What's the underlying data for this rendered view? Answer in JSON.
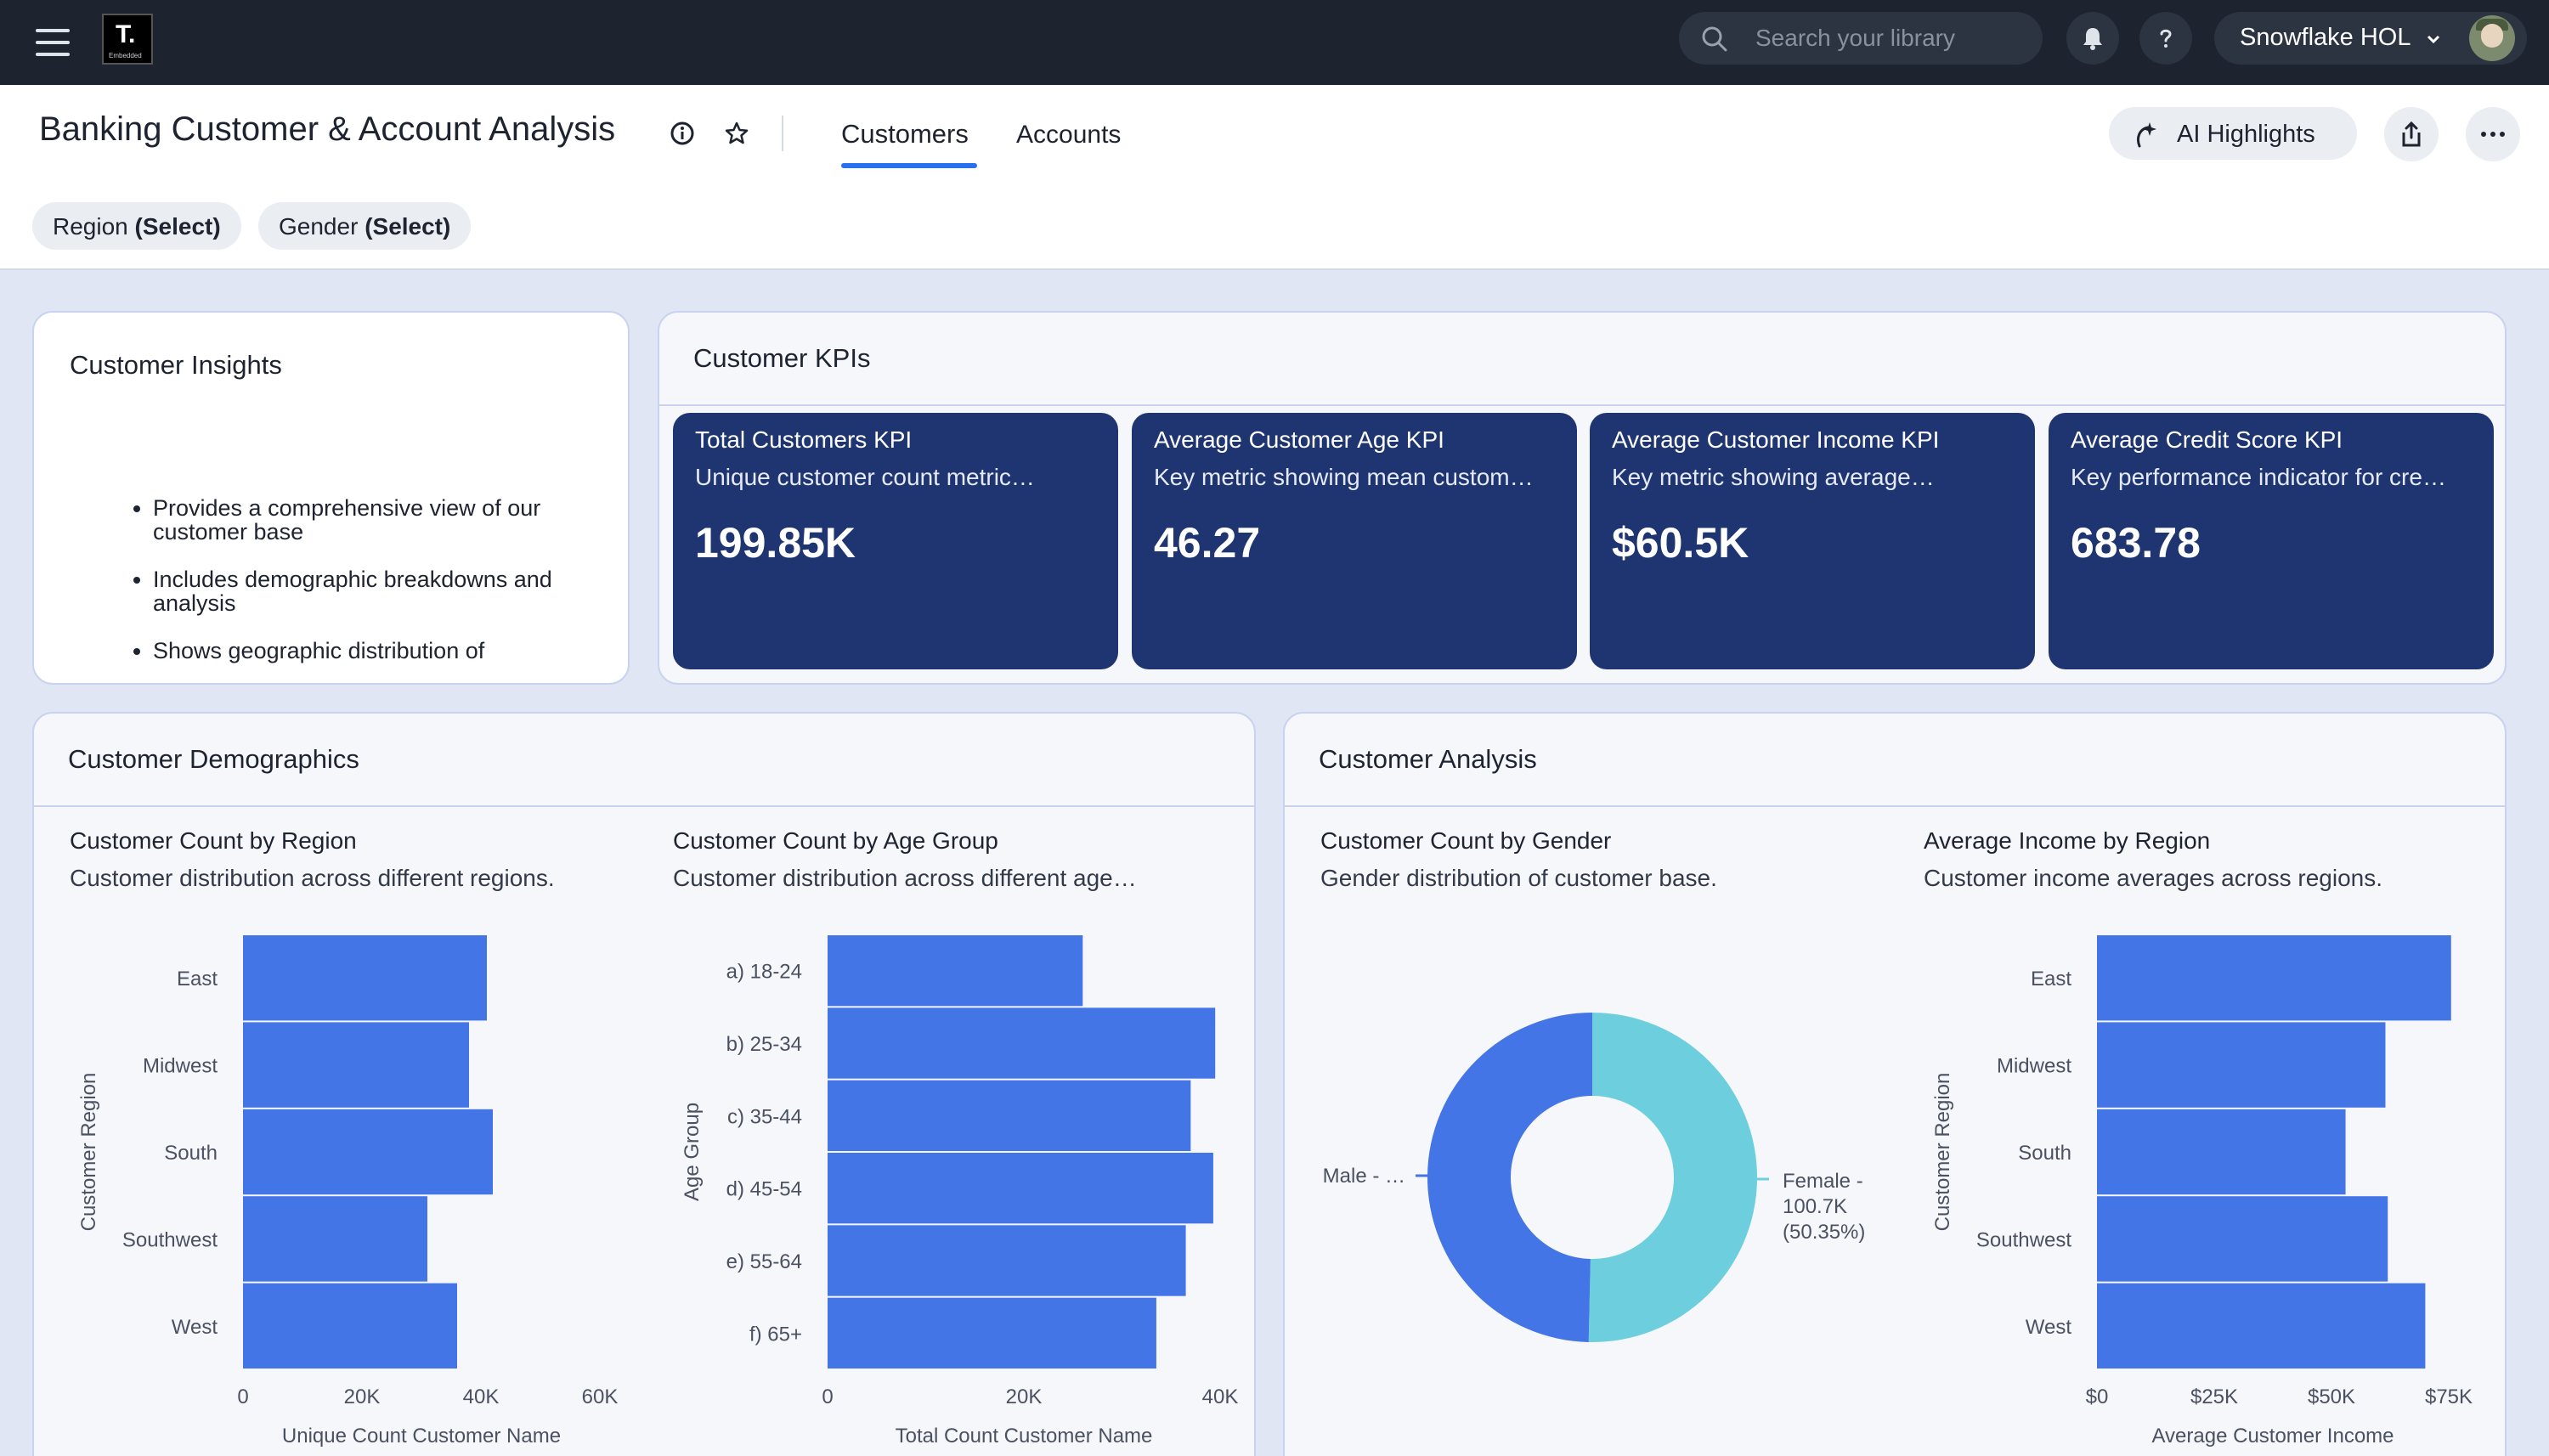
{
  "topbar": {
    "logo_letter": "T.",
    "logo_sub": "Embedded",
    "search_placeholder": "Search your library",
    "account_name": "Snowflake HOL"
  },
  "header": {
    "title": "Banking Customer & Account Analysis",
    "tabs": [
      {
        "label": "Customers",
        "active": true
      },
      {
        "label": "Accounts",
        "active": false
      }
    ],
    "ai_highlights_label": "AI Highlights",
    "filters": [
      {
        "label": "Region",
        "value": "(Select)"
      },
      {
        "label": "Gender",
        "value": "(Select)"
      }
    ]
  },
  "insights": {
    "title": "Customer Insights",
    "bullets": [
      "Provides a comprehensive view of our customer base",
      "Includes demographic breakdowns and analysis",
      "Shows geographic distribution of"
    ]
  },
  "kpis": {
    "title": "Customer KPIs",
    "items": [
      {
        "title": "Total Customers KPI",
        "desc": "Unique customer count metric…",
        "value": "199.85K"
      },
      {
        "title": "Average Customer Age KPI",
        "desc": "Key metric showing mean custom…",
        "value": "46.27"
      },
      {
        "title": "Average Customer Income KPI",
        "desc": "Key metric showing average…",
        "value": "$60.5K"
      },
      {
        "title": "Average Credit Score KPI",
        "desc": "Key performance indicator for cre…",
        "value": "683.78"
      }
    ]
  },
  "demographics": {
    "title": "Customer Demographics"
  },
  "analysis": {
    "title": "Customer Analysis"
  },
  "colors": {
    "bar": "#4475e6",
    "donut_male": "#4475e6",
    "donut_female": "#6dcfdd",
    "kpi_bg": "#1f3572",
    "topbar": "#1d232f"
  },
  "chart_data": [
    {
      "type": "bar",
      "orientation": "horizontal",
      "title": "Customer Count by Region",
      "subtitle": "Customer distribution across different regions.",
      "categories": [
        "East",
        "Midwest",
        "South",
        "Southwest",
        "West"
      ],
      "values": [
        41000,
        38000,
        42000,
        31000,
        36000
      ],
      "xlabel": "Unique Count Customer Name",
      "ylabel": "Customer Region",
      "xticks": [
        "0",
        "20K",
        "40K",
        "60K"
      ],
      "xlim": [
        0,
        60000
      ]
    },
    {
      "type": "bar",
      "orientation": "horizontal",
      "title": "Customer Count by Age Group",
      "subtitle": "Customer distribution across different age…",
      "categories": [
        "a) 18-24",
        "b) 25-34",
        "c) 35-44",
        "d) 45-54",
        "e) 55-64",
        "f) 65+"
      ],
      "values": [
        26000,
        39500,
        37000,
        39300,
        36500,
        33500
      ],
      "xlabel": "Total Count Customer Name",
      "ylabel": "Age Group",
      "xticks": [
        "0",
        "20K",
        "40K"
      ],
      "xlim": [
        0,
        40000
      ]
    },
    {
      "type": "pie",
      "donut": true,
      "title": "Customer Count by Gender",
      "subtitle": "Gender distribution of customer base.",
      "categories": [
        "Male",
        "Female"
      ],
      "values": [
        49.65,
        50.35
      ],
      "labels": [
        "Male - …",
        "Female -",
        "100.7K",
        "(50.35%)"
      ]
    },
    {
      "type": "bar",
      "orientation": "horizontal",
      "title": "Average Income by Region",
      "subtitle": "Customer income averages across regions.",
      "categories": [
        "East",
        "Midwest",
        "South",
        "Southwest",
        "West"
      ],
      "values": [
        75500,
        61500,
        53000,
        62000,
        70000
      ],
      "xlabel": "Average Customer Income",
      "ylabel": "Customer Region",
      "xticks": [
        "$0",
        "$25K",
        "$50K",
        "$75K"
      ],
      "xlim": [
        0,
        75000
      ]
    }
  ]
}
